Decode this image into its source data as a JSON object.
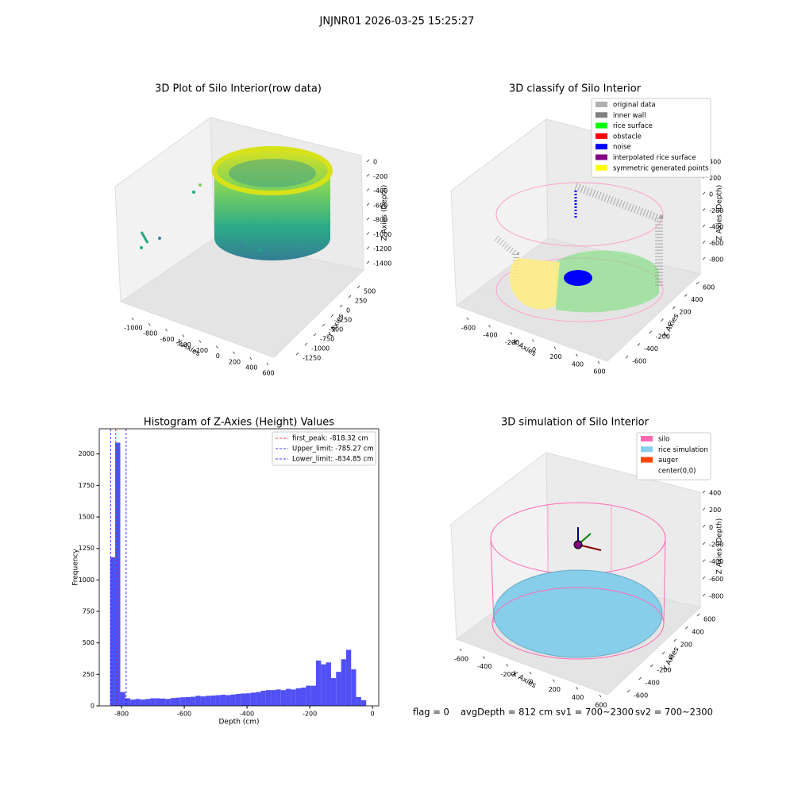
{
  "title": "JNJNR01 2026-03-25 15:25:27",
  "footer": [
    "flag = 0",
    "avgDepth = 812 cm",
    "sv1 = 700~2300",
    "sv2 = 700~2300"
  ],
  "chart_data": [
    {
      "type": "scatter3d",
      "title": "3D Plot of Silo Interior(row data)",
      "xlabel": "X Axies",
      "ylabel": "Y Axies",
      "zlabel": "Z Axies (Depth)",
      "xticks": [
        -1000,
        -800,
        -600,
        -400,
        -200,
        0,
        200,
        400,
        600
      ],
      "yticks": [
        500,
        250,
        0,
        -250,
        -500,
        -750,
        -1000,
        -1250
      ],
      "zticks": [
        0,
        -200,
        -400,
        -600,
        -800,
        -1000,
        -1200,
        -1400
      ]
    },
    {
      "type": "scatter3d",
      "title": "3D classify of Silo Interior",
      "xlabel": "X Axies",
      "ylabel": "Y Axies",
      "zlabel": "Z Axies (Depth)",
      "xticks": [
        -600,
        -400,
        -200,
        0,
        200,
        400,
        600
      ],
      "yticks": [
        600,
        400,
        200,
        0,
        -200,
        -400,
        -600
      ],
      "zticks": [
        400,
        200,
        0,
        -200,
        -400,
        -600,
        -800
      ],
      "legend": [
        {
          "name": "original data",
          "color": "#b0b0b0"
        },
        {
          "name": "inner wall",
          "color": "#808080"
        },
        {
          "name": "rice surface",
          "color": "#00ff00"
        },
        {
          "name": "obstacle",
          "color": "#ff0000"
        },
        {
          "name": "noise",
          "color": "#0000ff"
        },
        {
          "name": "interpolated rice surface",
          "color": "#800080"
        },
        {
          "name": "symmetric generated points",
          "color": "#ffff00"
        }
      ]
    },
    {
      "type": "histogram",
      "title": "Histogram of Z-Axies (Height) Values",
      "xlabel": "Depth (cm)",
      "ylabel": "Frequency",
      "color": "#5050f5",
      "bins": [
        -836,
        -820,
        -804,
        -788,
        -772,
        -756,
        -740,
        -724,
        -708,
        -692,
        -676,
        -660,
        -644,
        -628,
        -612,
        -596,
        -580,
        -564,
        -548,
        -532,
        -516,
        -500,
        -484,
        -468,
        -452,
        -436,
        -420,
        -404,
        -388,
        -372,
        -356,
        -340,
        -324,
        -308,
        -292,
        -276,
        -260,
        -244,
        -228,
        -212,
        -196,
        -180,
        -164,
        -148,
        -132,
        -116,
        -100,
        -84,
        -68,
        -52,
        -36,
        -20
      ],
      "values": [
        1180,
        2090,
        110,
        60,
        50,
        55,
        50,
        55,
        60,
        60,
        58,
        55,
        62,
        65,
        68,
        70,
        72,
        80,
        75,
        80,
        82,
        85,
        88,
        85,
        90,
        95,
        98,
        100,
        105,
        110,
        120,
        125,
        125,
        130,
        125,
        135,
        130,
        140,
        145,
        160,
        160,
        360,
        330,
        345,
        220,
        270,
        370,
        445,
        290,
        70,
        45
      ],
      "xlim": [
        -871,
        20
      ],
      "ylim": [
        0,
        2200
      ],
      "xticks": [
        -800,
        -600,
        -400,
        -200,
        0
      ],
      "yticks": [
        0,
        250,
        500,
        750,
        1000,
        1250,
        1500,
        1750,
        2000
      ],
      "legend_loc": "upper right",
      "vlines": [
        {
          "value": -818.32,
          "label": "first_peak: -818.32 cm",
          "color": "#ff0000"
        },
        {
          "value": -785.27,
          "label": "Upper_limit: -785.27 cm",
          "color": "#0000ff"
        },
        {
          "value": -834.85,
          "label": "Lower_limit: -834.85 cm",
          "color": "#0000ff"
        }
      ]
    },
    {
      "type": "scatter3d",
      "title": "3D simulation of Silo Interior",
      "xlabel": "X Axies",
      "ylabel": "Y Axies",
      "zlabel": "Z Axies (Depth)",
      "xticks": [
        -600,
        -400,
        -200,
        0,
        200,
        400,
        600
      ],
      "yticks": [
        600,
        400,
        200,
        0,
        -200,
        -400,
        -600
      ],
      "zticks": [
        400,
        200,
        0,
        -200,
        -400,
        -600,
        -800
      ],
      "legend": [
        {
          "name": "silo",
          "color": "#ff69b4"
        },
        {
          "name": "rice simulation",
          "color": "#87ceeb"
        },
        {
          "name": "auger",
          "color": "#ff4500"
        },
        {
          "name": "center(0,0)",
          "color": "#ffffff"
        }
      ]
    }
  ]
}
